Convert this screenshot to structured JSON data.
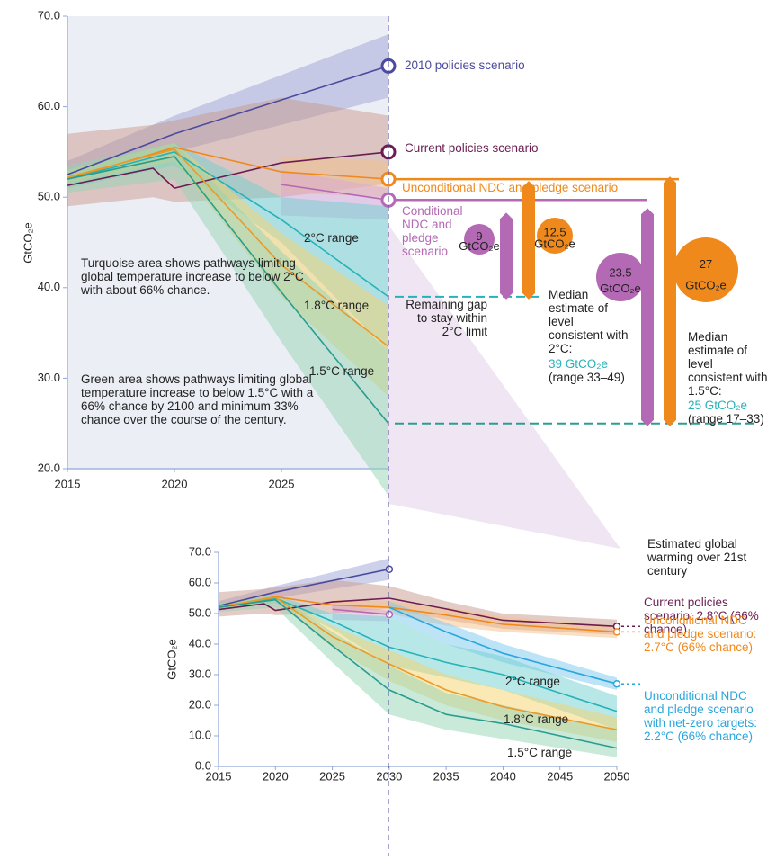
{
  "chart_data": [
    {
      "type": "line",
      "ylabel": "GtCO₂e",
      "xlim": [
        2015,
        2030
      ],
      "ylim": [
        20,
        70
      ],
      "xticks": [
        2015,
        2020,
        2025
      ],
      "yticks": [
        {
          "value": 20,
          "label": "20.0"
        },
        {
          "value": 30,
          "label": "30.0"
        },
        {
          "value": 40,
          "label": "40.0"
        },
        {
          "value": 50,
          "label": "50.0"
        },
        {
          "value": 60,
          "label": "60.0"
        },
        {
          "value": 70,
          "label": "70.0"
        }
      ],
      "series": [
        {
          "name": "2010 policies scenario",
          "color": "#4b4b9e",
          "band_color": "#9ea3d6",
          "marker": true,
          "x": [
            2015,
            2020,
            2030
          ],
          "values": [
            52.5,
            57,
            64.5
          ],
          "low": [
            51,
            55,
            61
          ],
          "high": [
            54,
            59,
            68
          ]
        },
        {
          "name": "Current policies scenario",
          "color": "#6b1d4f",
          "band_color": "#c99a8e",
          "marker": true,
          "x": [
            2015,
            2019,
            2020,
            2025,
            2030
          ],
          "values": [
            51.3,
            53.2,
            51,
            53.8,
            55
          ],
          "low": [
            49,
            50,
            49.5,
            50,
            51.5
          ],
          "high": [
            57,
            58,
            58.5,
            61,
            59
          ]
        },
        {
          "name": "Unconditional NDC and pledge scenario",
          "color": "#f0891c",
          "band_color": "#f5c08a",
          "marker": true,
          "x": [
            2015,
            2020,
            2025,
            2030
          ],
          "values": [
            52,
            55.5,
            52.8,
            52
          ],
          "low": [
            null,
            null,
            50.5,
            50
          ],
          "high": [
            null,
            null,
            54.5,
            54
          ]
        },
        {
          "name": "Conditional NDC and pledge scenario",
          "color": "#b469b4",
          "band_color": "#d5a8d8",
          "marker": true,
          "x": [
            2025,
            2030
          ],
          "values": [
            51.4,
            49.7
          ],
          "low": [
            48,
            47.5
          ],
          "high": [
            53,
            51
          ]
        },
        {
          "name": "2°C range",
          "color": "#25b3b8",
          "band_color": "#6fd0d0",
          "x": [
            2015,
            2020,
            2025,
            2030
          ],
          "values": [
            52,
            55,
            47.5,
            39
          ],
          "low": [
            51,
            53.5,
            45,
            33
          ],
          "high": [
            53,
            56,
            50,
            49
          ]
        },
        {
          "name": "1.8°C range",
          "color": "#eb9a2a",
          "band_color": "#f5d46a",
          "x": [
            2015,
            2020,
            2025,
            2030
          ],
          "values": [
            52.2,
            55.3,
            42.5,
            33.5
          ],
          "low": [
            51.5,
            54,
            39,
            28
          ],
          "high": [
            53,
            56,
            46,
            38
          ]
        },
        {
          "name": "1.5°C range",
          "color": "#2a9d8f",
          "band_color": "#93d3b3",
          "x": [
            2015,
            2020,
            2025,
            2030
          ],
          "values": [
            52,
            54.5,
            39.5,
            25
          ],
          "low": [
            50.5,
            52,
            34,
            17
          ],
          "high": [
            53.5,
            56,
            44,
            33
          ]
        }
      ],
      "gap_unit": "GtCO₂e",
      "gaps": [
        {
          "value": 9,
          "color": "#b469b4"
        },
        {
          "value": 12.5,
          "color": "#f0891c"
        },
        {
          "value": 23.5,
          "color": "#b469b4"
        },
        {
          "value": 27,
          "color": "#f0891c"
        }
      ],
      "annotations": {
        "turquoise_note": "Turquoise area shows pathways limiting global temperature increase to below 2°C with about 66% chance.",
        "green_note": "Green area shows pathways limiting global temperature increase to below 1.5°C with a 66% chance by 2100 and minimum 33% chance over the course of the century.",
        "remaining_gap": "Remaining gap to stay within 2°C limit",
        "median_2c": "Median estimate of level consistent with 2°C:",
        "median_2c_value": "39 GtCO₂e",
        "median_2c_range": "(range 33–49)",
        "median_15c": "Median estimate of level consistent with 1.5°C:",
        "median_15c_value": "25 GtCO₂e",
        "median_15c_range": "(range 17–33)"
      }
    },
    {
      "type": "line",
      "ylabel": "GtCO₂e",
      "xlim": [
        2015,
        2050
      ],
      "ylim": [
        0,
        70
      ],
      "xticks": [
        2015,
        2020,
        2025,
        2030,
        2035,
        2040,
        2045,
        2050
      ],
      "yticks": [
        {
          "value": 0,
          "label": "0.0"
        },
        {
          "value": 10,
          "label": "10.0"
        },
        {
          "value": 20,
          "label": "20.0"
        },
        {
          "value": 30,
          "label": "30.0"
        },
        {
          "value": 40,
          "label": "40.0"
        },
        {
          "value": 50,
          "label": "50.0"
        },
        {
          "value": 60,
          "label": "60.0"
        },
        {
          "value": 70,
          "label": "70.0"
        }
      ],
      "legend_title": "Estimated global warming over 21st century",
      "series": [
        {
          "color": "#4b4b9e",
          "band_color": "#9ea3d6",
          "marker": true,
          "x": [
            2015,
            2020,
            2030
          ],
          "values": [
            52.5,
            57,
            64.5
          ],
          "low": [
            51,
            55,
            61
          ],
          "high": [
            54,
            59,
            68
          ]
        },
        {
          "name": "Current policies scenario: 2.8°C (66% chance)",
          "color": "#6b1d4f",
          "band_color": "#c99a8e",
          "marker": true,
          "x": [
            2015,
            2019,
            2020,
            2025,
            2030,
            2035,
            2040,
            2050
          ],
          "values": [
            51.3,
            53.2,
            51,
            53.8,
            55,
            51.5,
            47.8,
            45.8
          ],
          "low": [
            49,
            50,
            49.5,
            50,
            51.5,
            48,
            45,
            43
          ],
          "high": [
            57,
            58,
            58.5,
            61,
            59,
            54,
            50,
            48
          ]
        },
        {
          "name": "Unconditional NDC and pledge scenario: 2.7°C (66% chance)",
          "color": "#f0891c",
          "band_color": "#f5c08a",
          "marker": true,
          "x": [
            2015,
            2020,
            2025,
            2030,
            2035,
            2040,
            2050
          ],
          "values": [
            52,
            55.5,
            52.8,
            52,
            49.5,
            46.5,
            44
          ],
          "low": [
            null,
            null,
            50.5,
            50,
            46,
            44,
            42
          ],
          "high": [
            null,
            null,
            54.5,
            54,
            52,
            49,
            46
          ]
        },
        {
          "color": "#b469b4",
          "band_color": "#d5a8d8",
          "marker": true,
          "x": [
            2025,
            2030
          ],
          "values": [
            51.4,
            49.7
          ],
          "low": [
            48,
            47.5
          ],
          "high": [
            53,
            51
          ]
        },
        {
          "name": "Unconditional NDC and pledge scenario with net-zero targets: 2.2°C (66% chance)",
          "color": "#2aa6dc",
          "band_color": "#7cc8ee",
          "marker": true,
          "x": [
            2030,
            2035,
            2040,
            2050
          ],
          "values": [
            52,
            44,
            37,
            27
          ],
          "low": [
            49,
            40,
            34,
            25
          ],
          "high": [
            54,
            47,
            40,
            29
          ]
        },
        {
          "name": "2°C range",
          "color": "#25b3b8",
          "band_color": "#6fd0d0",
          "x": [
            2015,
            2020,
            2025,
            2030,
            2035,
            2040,
            2050
          ],
          "values": [
            52,
            55,
            47.5,
            39,
            34,
            30,
            18
          ],
          "low": [
            51,
            53.5,
            45,
            33,
            29,
            25,
            12
          ],
          "high": [
            53,
            56,
            50,
            49,
            40,
            36,
            23
          ]
        },
        {
          "name": "1.8°C range",
          "color": "#eb9a2a",
          "band_color": "#f5d46a",
          "x": [
            2015,
            2020,
            2025,
            2030,
            2035,
            2040,
            2050
          ],
          "values": [
            52.2,
            55.3,
            42.5,
            33.5,
            25,
            19.5,
            12
          ],
          "low": [
            51.5,
            54,
            39,
            28,
            20,
            15,
            8
          ],
          "high": [
            53,
            56,
            46,
            38,
            30,
            25,
            16
          ]
        },
        {
          "name": "1.5°C range",
          "color": "#2a9d8f",
          "band_color": "#93d3b3",
          "x": [
            2015,
            2020,
            2025,
            2030,
            2035,
            2040,
            2050
          ],
          "values": [
            52,
            54.5,
            39.5,
            25,
            17,
            14,
            6
          ],
          "low": [
            50.5,
            52,
            34,
            17,
            12,
            9,
            3
          ],
          "high": [
            53.5,
            56,
            44,
            33,
            24,
            20,
            12
          ]
        }
      ]
    }
  ]
}
